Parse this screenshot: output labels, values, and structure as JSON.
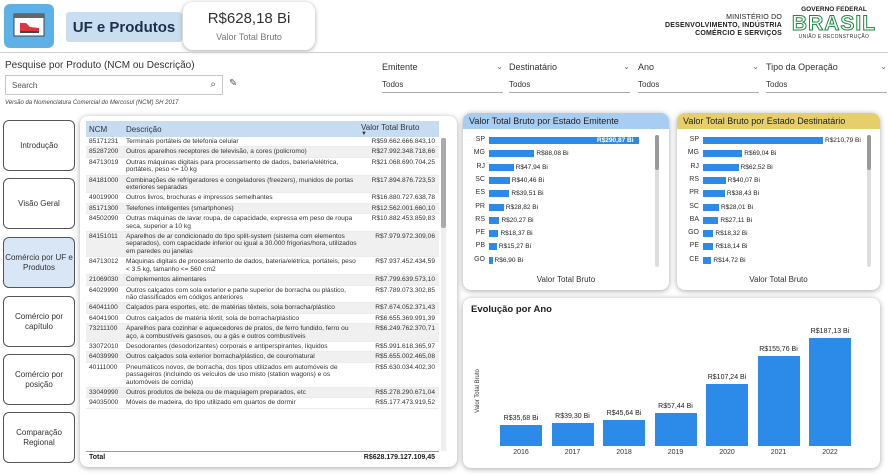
{
  "header": {
    "title": "UF e Produtos",
    "kpi_value": "R$628,18 Bi",
    "kpi_label": "Valor Total Bruto",
    "ministry_line1": "MINISTÉRIO DO",
    "ministry_line2": "DESENVOLVIMENTO, INDÚSTRIA",
    "ministry_line3": "COMÉRCIO E SERVIÇOS",
    "gov_top": "GOVERNO FEDERAL",
    "gov_logo": "BRASIL",
    "gov_bottom": "UNIÃO E RECONSTRUÇÃO"
  },
  "search": {
    "title": "Pesquise por Produto (NCM ou Descrição)",
    "placeholder": "Search",
    "note": "Versão da Nomenclatura Comercial do Mercosul (NCM) SH 2017"
  },
  "filters": [
    {
      "label": "Emitente",
      "value": "Todos"
    },
    {
      "label": "Destinatário",
      "value": "Todos"
    },
    {
      "label": "Ano",
      "value": "Todos"
    },
    {
      "label": "Tipo da Operação",
      "value": "Todos"
    }
  ],
  "nav": [
    {
      "label": "Introdução"
    },
    {
      "label": "Visão Geral"
    },
    {
      "label": "Comércio por UF e Produtos"
    },
    {
      "label": "Comércio por capítulo"
    },
    {
      "label": "Comércio por posição"
    },
    {
      "label": "Comparação Regional"
    }
  ],
  "table": {
    "headers": [
      "NCM",
      "Descrição",
      "Valor Total Bruto"
    ],
    "rows": [
      {
        "ncm": "85171231",
        "desc": "Terminais portáteis de telefonia celular",
        "val": "R$59.662.666.843,10"
      },
      {
        "ncm": "85287200",
        "desc": "Outros aparelhos receptores de televisão, a cores (policromo)",
        "val": "R$27.992.348.718,66"
      },
      {
        "ncm": "84713019",
        "desc": "Outras máquinas digitais para processamento de dados, bateria/elétrica, portáteis, peso <= 10 kg",
        "val": "R$21.068.690.704,25"
      },
      {
        "ncm": "84181000",
        "desc": "Combinações de refrigeradores e congeladores (freezers), munidos de portas exteriores separadas",
        "val": "R$17.894.876.723,53"
      },
      {
        "ncm": "49019900",
        "desc": "Outros livros, brochuras e impressos semelhantes",
        "val": "R$16.880.727.638,78"
      },
      {
        "ncm": "85171300",
        "desc": "Telefones inteligentes (smartphones)",
        "val": "R$12.562.001.660,10"
      },
      {
        "ncm": "84502090",
        "desc": "Outras máquinas de lavar roupa, de capacidade, expressa em peso de roupa seca, superior a 10 kg",
        "val": "R$10.882.453.859,83"
      },
      {
        "ncm": "84151011",
        "desc": "Aparelhos de ar condicionado do tipo split-system (sistema com elementos separados), com capacidade inferior ou igual a 30.000 frigorias/hora, utilizados em paredes ou janelas",
        "val": "R$7.979.972.309,06"
      },
      {
        "ncm": "84713012",
        "desc": "Máquinas digitais de processamento de dados, bateria/elétrica, portáteis, peso < 3.5 kg, tamanho <= 560 cm2",
        "val": "R$7.937.452.434,59"
      },
      {
        "ncm": "21069030",
        "desc": "Complementos alimentares",
        "val": "R$7.799.639.573,10"
      },
      {
        "ncm": "64029990",
        "desc": "Outros calçados com sola exterior e parte superior de borracha ou plástico, não classificados em códigos anteriores",
        "val": "R$7.789.073.302,85"
      },
      {
        "ncm": "64041100",
        "desc": "Calçados para esportes, etc. de matérias têxteis, sola borracha/plástico",
        "val": "R$7.674.052.371,43"
      },
      {
        "ncm": "64041900",
        "desc": "Outros calçados de matéria têxtil, sola de borracha/plástico",
        "val": "R$6.655.369.991,39"
      },
      {
        "ncm": "73211100",
        "desc": "Aparelhos para cozinhar e aquecedores de pratos, de ferro fundido, ferro ou aço, a combustíveis gasosos, ou a gás e outros combustíveis",
        "val": "R$6.249.762.370,71"
      },
      {
        "ncm": "33072010",
        "desc": "Desodorantes (desodorizantes) corporais e antiperspirantes, líquidos",
        "val": "R$5.991.618.365,97"
      },
      {
        "ncm": "64039990",
        "desc": "Outros calçados sola exterior borracha/plástico, de couro/natural",
        "val": "R$5.655.002.465,08"
      },
      {
        "ncm": "40111000",
        "desc": "Pneumáticos novos, de borracha, dos tipos utilizados em automóveis de passageiros (incluindo os veículos de uso misto (station wagons) e os automóveis de corrida)",
        "val": "R$5.630.034.402,30"
      },
      {
        "ncm": "33049990",
        "desc": "Outros produtos de beleza ou de maquiagem preparados, etc",
        "val": "R$5.278.290.671,04"
      },
      {
        "ncm": "94035000",
        "desc": "Móveis de madeira, do tipo utilizado em quartos de dormir",
        "val": "R$5.177.473.919,52"
      }
    ],
    "total_label": "Total",
    "total_value": "R$628.179.127.109,45"
  },
  "emitente": {
    "title": "Valor Total Bruto por Estado Emitente",
    "axis_title": "Valor Total Bruto",
    "header_color": "#a8cdf2",
    "states": [
      "SP",
      "MG",
      "RJ",
      "SC",
      "ES",
      "PR",
      "RS",
      "PE",
      "PB",
      "GO"
    ],
    "values": [
      290.87,
      88.08,
      47.94,
      40.46,
      39.51,
      28.82,
      20.27,
      18.37,
      15.27,
      6.9
    ],
    "labels": [
      "R$290,87 Bi",
      "R$88,08 Bi",
      "R$47,94 Bi",
      "R$40,46 Bi",
      "R$39,51 Bi",
      "R$28,82 Bi",
      "R$20,27 Bi",
      "R$18,37 Bi",
      "R$15,27 Bi",
      "R$6,90 Bi"
    ]
  },
  "destinatario": {
    "title": "Valor Total Bruto por Estado Destinatário",
    "axis_title": "Valor Total Bruto",
    "header_color": "#e6cf6b",
    "states": [
      "SP",
      "MG",
      "RJ",
      "RS",
      "PR",
      "SC",
      "BA",
      "GO",
      "PE",
      "CE"
    ],
    "values": [
      210.79,
      69.04,
      62.52,
      40.07,
      38.43,
      28.01,
      27.11,
      18.32,
      18.14,
      14.72
    ],
    "labels": [
      "R$210,79 Bi",
      "R$69,04 Bi",
      "R$62,52 Bi",
      "R$40,07 Bi",
      "R$38,43 Bi",
      "R$28,01 Bi",
      "R$27,11 Bi",
      "R$18,32 Bi",
      "R$18,14 Bi",
      "R$14,72 Bi"
    ]
  },
  "evolucao": {
    "title": "Evolução por Ano",
    "ylabel": "Valor Total Bruto",
    "years": [
      "2016",
      "2017",
      "2018",
      "2019",
      "2020",
      "2021",
      "2022"
    ],
    "values": [
      35.68,
      39.3,
      45.64,
      57.44,
      107.24,
      155.76,
      187.13
    ],
    "labels": [
      "R$35,68 Bi",
      "R$39,30 Bi",
      "R$45,64 Bi",
      "R$57,44 Bi",
      "R$107,24 Bi",
      "R$155,76 Bi",
      "R$187,13 Bi"
    ]
  },
  "chart_data": [
    {
      "type": "bar",
      "title": "Valor Total Bruto por Estado Emitente",
      "categories": [
        "SP",
        "MG",
        "RJ",
        "SC",
        "ES",
        "PR",
        "RS",
        "PE",
        "PB",
        "GO"
      ],
      "values": [
        290.87,
        88.08,
        47.94,
        40.46,
        39.51,
        28.82,
        20.27,
        18.37,
        15.27,
        6.9
      ],
      "xlabel": "Valor Total Bruto",
      "ylabel": ""
    },
    {
      "type": "bar",
      "title": "Valor Total Bruto por Estado Destinatário",
      "categories": [
        "SP",
        "MG",
        "RJ",
        "RS",
        "PR",
        "SC",
        "BA",
        "GO",
        "PE",
        "CE"
      ],
      "values": [
        210.79,
        69.04,
        62.52,
        40.07,
        38.43,
        28.01,
        27.11,
        18.32,
        18.14,
        14.72
      ],
      "xlabel": "Valor Total Bruto",
      "ylabel": ""
    },
    {
      "type": "bar",
      "title": "Evolução por Ano",
      "categories": [
        "2016",
        "2017",
        "2018",
        "2019",
        "2020",
        "2021",
        "2022"
      ],
      "values": [
        35.68,
        39.3,
        45.64,
        57.44,
        107.24,
        155.76,
        187.13
      ],
      "xlabel": "",
      "ylabel": "Valor Total Bruto"
    }
  ]
}
